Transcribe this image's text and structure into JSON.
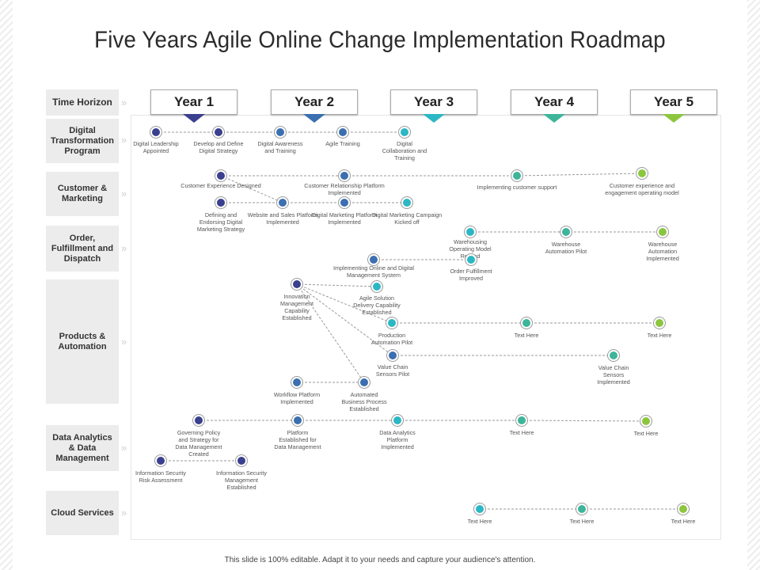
{
  "title": "Five Years Agile Online Change Implementation Roadmap",
  "footer": "This slide is 100% editable. Adapt it to your needs and capture your audience's attention.",
  "colors": {
    "year1": "#3a3f8f",
    "year2": "#3b6fb0",
    "year3": "#2cb7c4",
    "year4": "#3db59a",
    "year5": "#8cc63f",
    "row_bg": "#ececec",
    "line": "#9a9a9a"
  },
  "header_label": "Time Horizon",
  "years": [
    "Year 1",
    "Year 2",
    "Year 3",
    "Year 4",
    "Year 5"
  ],
  "rows": [
    "Digital Transformation Program",
    "Customer & Marketing",
    "Order, Fulfillment and Dispatch",
    "Products & Automation",
    "Data Analytics & Data Management",
    "Cloud Services"
  ],
  "milestones": [
    "Digital Leadership Appointed",
    "Develop and Define Digital Strategy",
    "Digital Awareness and Training",
    "Agile Training",
    "Digital Collaboration and Training",
    "Customer Experience Designed",
    "Customer Relationship Platform Implemented",
    "Implementing customer support",
    "Customer experience and engagement operating model",
    "Defining and Endorsing Digital Marketing Strategy",
    "Website and Sales Platform Implemented",
    "Digital Marketing Platform Implemented",
    "Digital Marketing Campaign Kicked off",
    "Warehousing Operating Model Refined",
    "Warehouse Automation Pilot",
    "Warehouse Automation Implemented",
    "Implementing Online and Digital Management System",
    "Order Fulfillment Improved",
    "Innovation Management Capability Established",
    "Agile Solution Delivery Capability Established",
    "Production Automation Pilot",
    "Text Here",
    "Text Here",
    "Value Chain Sensors Pilot",
    "Value Chain Sensors Implemented",
    "Workflow Platform Implemented",
    "Automated Business Process Established",
    "Governing Policy and Strategy for Data Management Created",
    "Platform Established for Data Management",
    "Data Analytics Platform Implemented",
    "Text Here",
    "Text Here",
    "Information Security Risk Assessment",
    "Information Security Management Established",
    "Text Here",
    "Text Here",
    "Text Here"
  ]
}
